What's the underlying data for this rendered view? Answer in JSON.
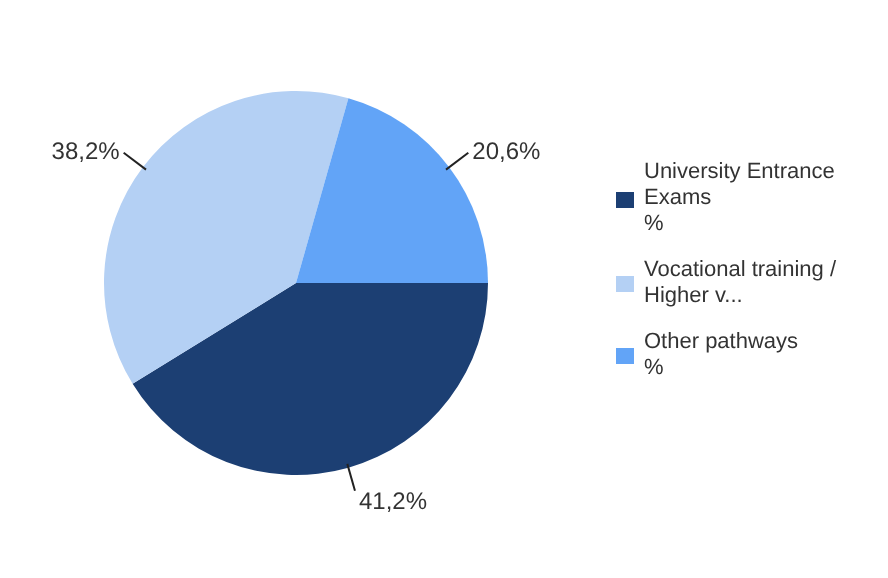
{
  "chart_data": {
    "type": "pie",
    "categories": [
      "University Entrance Exams\n%",
      "Vocational training / Higher v...",
      "Other pathways\n%"
    ],
    "values": [
      41.2,
      38.2,
      20.6
    ],
    "colors": [
      "#1c3f73",
      "#b4d0f4",
      "#62a4f7"
    ],
    "value_labels": [
      "41,2%",
      "38,2%",
      "20,6%"
    ],
    "legend": "right"
  }
}
